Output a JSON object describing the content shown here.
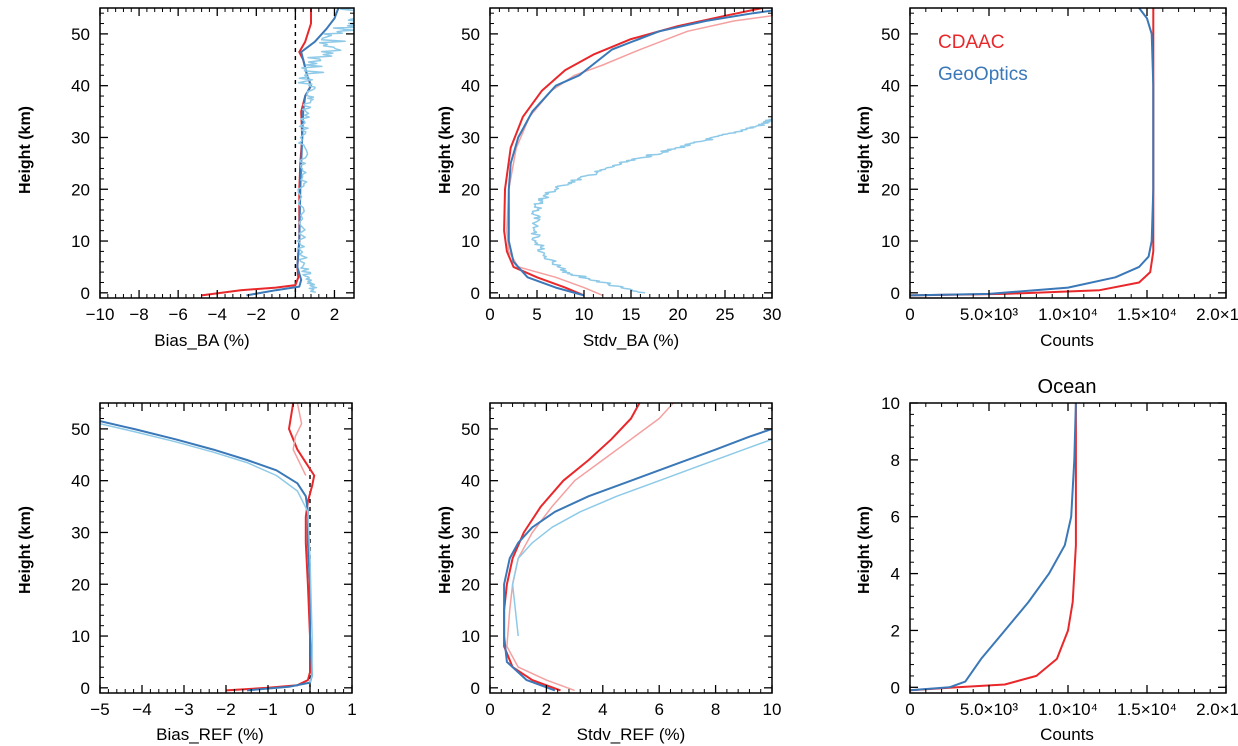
{
  "colors": {
    "cdaac": "#e8282b",
    "cdaac_light": "#f5a0a0",
    "geooptics": "#3a78b8",
    "geooptics_light": "#8ecae8",
    "frame": "#000000"
  },
  "legend": {
    "cdaac": "CDAAC",
    "geooptics": "GeoOptics"
  },
  "chart_data": [
    {
      "type": "line",
      "panel": "bias-ba",
      "title": "",
      "xlabel": "Bias_BA (%)",
      "ylabel": "Height (km)",
      "xlim": [
        -10,
        3
      ],
      "ylim": [
        -1,
        55
      ],
      "xticks": [
        -10,
        -8,
        -6,
        -4,
        -2,
        0,
        2
      ],
      "xtick_labels": [
        "−10",
        "−8",
        "−6",
        "−4",
        "−2",
        "0",
        "2"
      ],
      "yticks": [
        0,
        10,
        20,
        30,
        40,
        50
      ],
      "zero_line": true,
      "series": [
        {
          "name": "CDAAC",
          "color": "cdaac",
          "width": 2,
          "x": [
            -4.8,
            -2.8,
            -1.0,
            0.0,
            0.15,
            0.1,
            0.2,
            0.2,
            0.25,
            0.35,
            0.3,
            0.5,
            0.8,
            0.6,
            0.4,
            0.2,
            0.5,
            0.8,
            0.8
          ],
          "y": [
            -0.5,
            0.5,
            1.0,
            1.5,
            3.0,
            5.0,
            10.0,
            20.0,
            25.0,
            30.0,
            35.0,
            38.0,
            40.0,
            42.0,
            45.0,
            46.5,
            48.5,
            52.0,
            55.0
          ]
        },
        {
          "name": "GeoOptics",
          "color": "geooptics",
          "width": 2,
          "x": [
            -2.5,
            -1.0,
            0.2,
            0.3,
            0.1,
            0.2,
            0.25,
            0.3,
            0.35,
            0.4,
            0.5,
            0.8,
            0.6,
            0.4,
            0.3,
            1.0,
            1.6,
            2.0,
            2.2
          ],
          "y": [
            -0.5,
            0.5,
            1.2,
            2.5,
            5.0,
            10.0,
            20.0,
            25.0,
            30.0,
            35.0,
            38.0,
            40.0,
            42.0,
            45.0,
            46.5,
            48.5,
            51.0,
            53.0,
            55.0
          ]
        },
        {
          "name": "GeoOptics (noisy)",
          "color": "geooptics_light",
          "width": 1.5,
          "noisy": true,
          "x": [
            1.0,
            0.8,
            0.4,
            0.3,
            0.35,
            0.4,
            0.4,
            0.5,
            0.8,
            0.9,
            1.5,
            2.2,
            2.8,
            3.0
          ],
          "y": [
            0.0,
            2.0,
            5.0,
            10.0,
            20.0,
            25.0,
            30.0,
            35.0,
            38.0,
            42.0,
            46.0,
            50.0,
            52.0,
            55.0
          ]
        }
      ]
    },
    {
      "type": "line",
      "panel": "stdv-ba",
      "title": "",
      "xlabel": "Stdv_BA (%)",
      "ylabel": "Height (km)",
      "xlim": [
        0,
        30
      ],
      "ylim": [
        -1,
        55
      ],
      "xticks": [
        0,
        5,
        10,
        15,
        20,
        25,
        30
      ],
      "xtick_labels": [
        "0",
        "5",
        "10",
        "15",
        "20",
        "25",
        "30"
      ],
      "yticks": [
        0,
        10,
        20,
        30,
        40,
        50
      ],
      "zero_line": false,
      "series": [
        {
          "name": "CDAAC",
          "color": "cdaac",
          "width": 2,
          "x": [
            10.0,
            8.0,
            5.0,
            2.5,
            1.8,
            1.5,
            1.6,
            2.2,
            3.5,
            5.5,
            8.0,
            11.0,
            15.0,
            20.0,
            25.0,
            29.0
          ],
          "y": [
            -0.5,
            1.0,
            3.0,
            5.0,
            8.0,
            12.0,
            20.0,
            28.0,
            34.0,
            39.0,
            43.0,
            46.0,
            49.0,
            51.5,
            53.5,
            55.0
          ]
        },
        {
          "name": "CDAAC (light)",
          "color": "cdaac_light",
          "width": 1.5,
          "x": [
            12.0,
            10.0,
            7.0,
            3.0,
            2.0,
            1.8,
            2.0,
            2.8,
            4.2,
            6.5,
            9.0,
            12.0,
            16.0,
            21.0,
            26.0,
            30.0
          ],
          "y": [
            -0.5,
            1.0,
            3.0,
            5.0,
            8.0,
            12.0,
            20.0,
            28.0,
            34.0,
            39.0,
            42.0,
            44.0,
            47.0,
            50.5,
            52.5,
            53.5
          ]
        },
        {
          "name": "GeoOptics",
          "color": "geooptics",
          "width": 2,
          "x": [
            10.0,
            7.0,
            4.0,
            2.5,
            2.0,
            2.0,
            2.2,
            3.0,
            4.5,
            7.0,
            9.5,
            13.0,
            18.0,
            23.0,
            28.0,
            30.0
          ],
          "y": [
            -0.5,
            1.0,
            3.0,
            6.0,
            10.0,
            20.0,
            25.0,
            30.0,
            35.0,
            40.0,
            42.0,
            47.0,
            50.5,
            52.5,
            54.0,
            54.5
          ]
        },
        {
          "name": "GeoOptics (noisy)",
          "color": "geooptics_light",
          "width": 1.5,
          "noisy": true,
          "x": [
            16.0,
            12.0,
            8.0,
            6.0,
            5.0,
            4.8,
            5.0,
            6.0,
            8.0,
            11.0,
            14.0,
            17.0,
            20.0,
            23.0,
            26.0,
            29.0,
            30.0
          ],
          "y": [
            0.0,
            2.0,
            4.0,
            7.0,
            10.0,
            14.0,
            17.0,
            19.0,
            21.0,
            23.0,
            25.0,
            26.5,
            28.0,
            29.5,
            31.0,
            32.5,
            33.5
          ]
        }
      ]
    },
    {
      "type": "line",
      "panel": "counts-global",
      "title": "",
      "xlabel": "Counts",
      "ylabel": "Height (km)",
      "xlim": [
        0,
        20000
      ],
      "ylim": [
        -1,
        55
      ],
      "xticks": [
        0,
        5000,
        10000,
        15000,
        20000
      ],
      "xtick_labels": [
        "0",
        "5.0×10³",
        "1.0×10⁴",
        "1.5×10⁴",
        "2.0×10⁴"
      ],
      "yticks": [
        0,
        10,
        20,
        30,
        40,
        50
      ],
      "zero_line": false,
      "legend_placement": "top-left",
      "series": [
        {
          "name": "CDAAC",
          "color": "cdaac",
          "width": 2,
          "x": [
            0,
            6000,
            12000,
            14500,
            15200,
            15400,
            15400,
            15400
          ],
          "y": [
            -0.5,
            -0.2,
            0.5,
            2.0,
            4.0,
            8.0,
            30.0,
            55.0
          ]
        },
        {
          "name": "GeoOptics",
          "color": "geooptics",
          "width": 2,
          "x": [
            0,
            5000,
            10000,
            13000,
            14500,
            15100,
            15300,
            15400,
            15400,
            15300,
            15000,
            14500
          ],
          "y": [
            -0.5,
            -0.2,
            1.0,
            3.0,
            5.0,
            7.0,
            10.0,
            20.0,
            40.0,
            50.0,
            53.0,
            55.0
          ]
        }
      ]
    },
    {
      "type": "line",
      "panel": "bias-ref",
      "title": "",
      "xlabel": "Bias_REF (%)",
      "ylabel": "Height (km)",
      "xlim": [
        -5,
        1
      ],
      "ylim": [
        -1,
        55
      ],
      "xticks": [
        -5,
        -4,
        -3,
        -2,
        -1,
        0,
        1
      ],
      "xtick_labels": [
        "−5",
        "−4",
        "−3",
        "−2",
        "−1",
        "0",
        "1"
      ],
      "yticks": [
        0,
        10,
        20,
        30,
        40,
        50
      ],
      "zero_line": true,
      "series": [
        {
          "name": "CDAAC",
          "color": "cdaac",
          "width": 2,
          "x": [
            -2.0,
            -1.0,
            -0.3,
            -0.05,
            0.0,
            0.0,
            -0.05,
            -0.1,
            -0.1,
            -0.05,
            0.05,
            0.1,
            -0.1,
            -0.3,
            -0.5,
            -0.4
          ],
          "y": [
            -0.5,
            0.0,
            0.5,
            1.5,
            3.0,
            10.0,
            20.0,
            28.0,
            33.0,
            36.0,
            39.0,
            41.0,
            43.5,
            46.0,
            50.0,
            55.0
          ]
        },
        {
          "name": "CDAAC (light)",
          "color": "cdaac_light",
          "width": 1.5,
          "x": [
            -0.1,
            -0.25,
            -0.4,
            -0.35,
            -0.2,
            -0.3
          ],
          "y": [
            41.0,
            43.5,
            46.0,
            48.5,
            51.0,
            55.0
          ]
        },
        {
          "name": "GeoOptics",
          "color": "geooptics",
          "width": 2,
          "x": [
            -1.5,
            -0.5,
            0.0,
            0.05,
            0.0,
            0.0,
            -0.05,
            -0.05,
            -0.1,
            -0.3,
            -0.8,
            -1.5,
            -2.3,
            -3.2,
            -4.2,
            -5.0
          ],
          "y": [
            -0.5,
            0.2,
            1.0,
            2.5,
            10.0,
            20.0,
            28.0,
            34.0,
            37.0,
            39.5,
            42.0,
            44.0,
            46.0,
            48.0,
            50.0,
            51.5
          ]
        },
        {
          "name": "GeoOptics (light)",
          "color": "geooptics_light",
          "width": 1.5,
          "x": [
            0.0,
            0.05,
            0.05,
            0.0,
            -0.05,
            -0.3,
            -0.8,
            -1.5,
            -2.3,
            -3.2,
            -4.2,
            -5.0
          ],
          "y": [
            1.0,
            2.5,
            10.0,
            25.0,
            34.0,
            38.0,
            41.0,
            43.5,
            45.5,
            47.5,
            49.5,
            51.0
          ]
        }
      ]
    },
    {
      "type": "line",
      "panel": "stdv-ref",
      "title": "",
      "xlabel": "Stdv_REF (%)",
      "ylabel": "Height (km)",
      "xlim": [
        0,
        10
      ],
      "ylim": [
        -1,
        55
      ],
      "xticks": [
        0,
        2,
        4,
        6,
        8,
        10
      ],
      "xtick_labels": [
        "0",
        "2",
        "4",
        "6",
        "8",
        "10"
      ],
      "yticks": [
        0,
        10,
        20,
        30,
        40,
        50
      ],
      "zero_line": false,
      "series": [
        {
          "name": "CDAAC",
          "color": "cdaac",
          "width": 2,
          "x": [
            2.5,
            1.5,
            0.8,
            0.5,
            0.5,
            0.6,
            0.8,
            1.2,
            1.8,
            2.6,
            3.5,
            4.3,
            5.0,
            5.3
          ],
          "y": [
            -0.5,
            1.5,
            4.0,
            8.0,
            15.0,
            20.0,
            25.0,
            30.0,
            35.0,
            40.0,
            44.0,
            48.0,
            52.0,
            55.0
          ]
        },
        {
          "name": "CDAAC (light)",
          "color": "cdaac_light",
          "width": 1.5,
          "x": [
            3.0,
            2.0,
            1.0,
            0.6,
            0.7,
            0.8,
            1.0,
            1.5,
            2.2,
            3.0,
            4.0,
            5.0,
            6.0,
            6.5
          ],
          "y": [
            -0.5,
            1.5,
            4.0,
            8.0,
            15.0,
            20.0,
            25.0,
            30.0,
            35.0,
            40.0,
            44.0,
            48.0,
            52.0,
            55.0
          ]
        },
        {
          "name": "GeoOptics",
          "color": "geooptics",
          "width": 2,
          "x": [
            2.3,
            1.3,
            0.6,
            0.5,
            0.5,
            0.7,
            1.0,
            1.5,
            2.3,
            3.5,
            5.0,
            6.5,
            8.0,
            9.2,
            10.0
          ],
          "y": [
            -0.5,
            1.5,
            5.0,
            10.0,
            20.0,
            25.0,
            28.0,
            31.0,
            34.0,
            37.0,
            40.0,
            43.0,
            46.0,
            48.5,
            50.0
          ]
        },
        {
          "name": "GeoOptics (light)",
          "color": "geooptics_light",
          "width": 1.5,
          "x": [
            1.0,
            0.8,
            1.0,
            1.5,
            2.2,
            3.2,
            4.5,
            6.0,
            7.5,
            9.0,
            10.0
          ],
          "y": [
            10.0,
            20.0,
            25.0,
            28.0,
            31.0,
            34.0,
            37.0,
            40.0,
            43.0,
            46.0,
            48.0
          ]
        }
      ]
    },
    {
      "type": "line",
      "panel": "counts-ocean",
      "title": "Ocean",
      "xlabel": "Counts",
      "ylabel": "Height (km)",
      "xlim": [
        0,
        20000
      ],
      "ylim": [
        -0.2,
        10
      ],
      "xticks": [
        0,
        5000,
        10000,
        15000,
        20000
      ],
      "xtick_labels": [
        "0",
        "5.0×10³",
        "1.0×10⁴",
        "1.5×10⁴",
        "2.0×10⁴"
      ],
      "yticks": [
        0,
        2,
        4,
        6,
        8,
        10
      ],
      "zero_line": false,
      "series": [
        {
          "name": "CDAAC",
          "color": "cdaac",
          "width": 2,
          "x": [
            0,
            3000,
            6000,
            8000,
            9300,
            10000,
            10300,
            10500,
            10500,
            10500
          ],
          "y": [
            -0.1,
            0.0,
            0.1,
            0.4,
            1.0,
            2.0,
            3.0,
            5.0,
            8.0,
            10.0
          ]
        },
        {
          "name": "GeoOptics",
          "color": "geooptics",
          "width": 2,
          "x": [
            0,
            2500,
            3500,
            4500,
            6000,
            7500,
            8800,
            9800,
            10200,
            10400,
            10500
          ],
          "y": [
            -0.1,
            0.0,
            0.2,
            1.0,
            2.0,
            3.0,
            4.0,
            5.0,
            6.0,
            8.0,
            10.0
          ]
        }
      ]
    }
  ]
}
